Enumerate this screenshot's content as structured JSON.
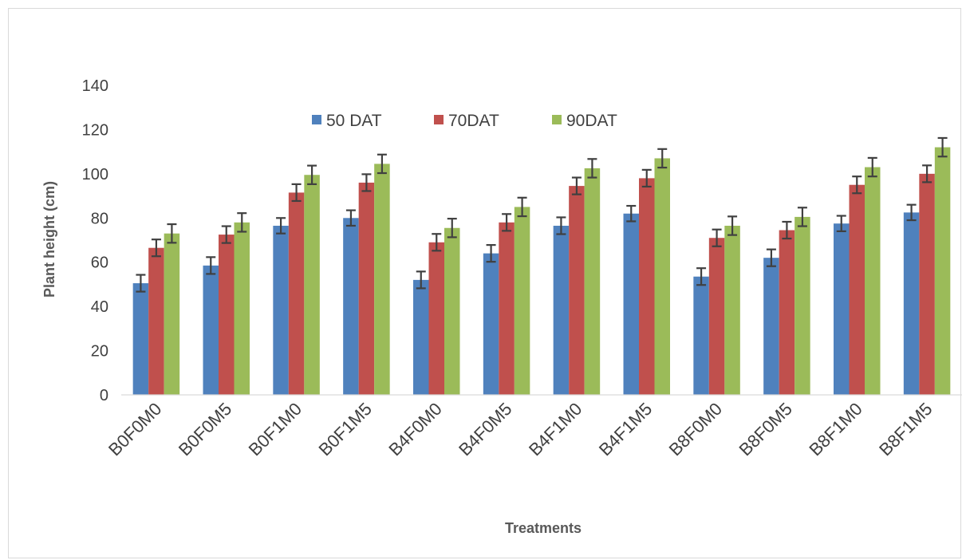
{
  "chart_data": {
    "type": "bar",
    "title": "",
    "xlabel": "Treatments",
    "ylabel": "Plant height (cm)",
    "ylim": [
      0,
      140
    ],
    "yticks": [
      0,
      20,
      40,
      60,
      80,
      100,
      120,
      140
    ],
    "grid": false,
    "legend_position": "top-center",
    "error_bars": true,
    "categories": [
      "B0F0M0",
      "B0F0M5",
      "B0F1M0",
      "B0F1M5",
      "B4F0M0",
      "B4F0M5",
      "B4F1M0",
      "B4F1M5",
      "B8F0M0",
      "B8F0M5",
      "B8F1M0",
      "B8F1M5"
    ],
    "series": [
      {
        "name": "50 DAT",
        "color": "#4f81bd",
        "values": [
          50.5,
          58.5,
          76.5,
          80,
          52,
          64,
          76.5,
          82,
          53.5,
          62,
          77.5,
          82.5
        ],
        "errors": [
          3.8,
          3.8,
          3.5,
          3.5,
          3.8,
          3.8,
          3.8,
          3.5,
          3.8,
          3.8,
          3.5,
          3.5
        ]
      },
      {
        "name": "70DAT",
        "color": "#c0504d",
        "values": [
          66.5,
          72.5,
          91.5,
          96,
          69,
          78,
          94.5,
          98,
          71,
          74.5,
          95,
          100
        ],
        "errors": [
          3.8,
          3.8,
          3.8,
          3.8,
          3.8,
          3.8,
          3.8,
          3.8,
          3.8,
          3.8,
          3.8,
          3.8
        ]
      },
      {
        "name": "90DAT",
        "color": "#9bbb59",
        "values": [
          73,
          78,
          99.5,
          104.5,
          75.5,
          85,
          102.5,
          107,
          76.5,
          80.5,
          103,
          112
        ],
        "errors": [
          4.2,
          4.2,
          4.2,
          4.2,
          4.2,
          4.2,
          4.2,
          4.2,
          4.2,
          4.2,
          4.2,
          4.2
        ]
      }
    ]
  }
}
